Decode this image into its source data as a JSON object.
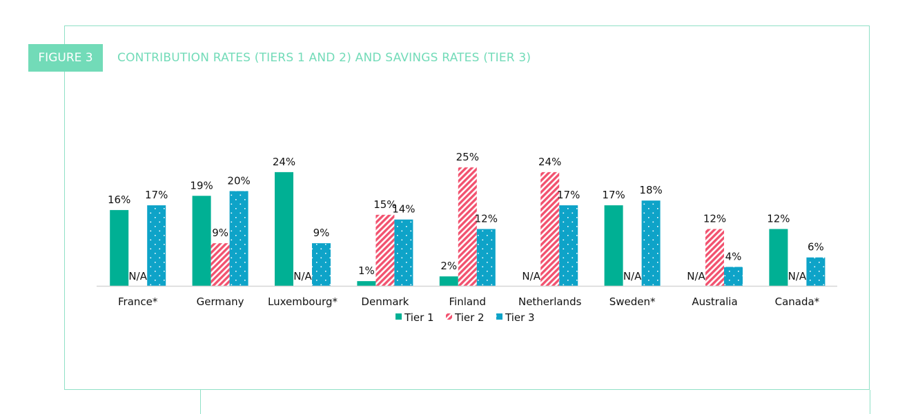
{
  "figure": {
    "label": "FIGURE 3",
    "title": "CONTRIBUTION RATES (TIERS 1 AND 2) AND SAVINGS RATES (TIER 3)"
  },
  "chart_data": {
    "type": "bar",
    "title": "CONTRIBUTION RATES (TIERS 1 AND 2) AND SAVINGS RATES (TIER 3)",
    "categories": [
      "France*",
      "Germany",
      "Luxembourg*",
      "Denmark",
      "Finland",
      "Netherlands",
      "Sweden*",
      "Australia",
      "Canada*"
    ],
    "series": [
      {
        "name": "Tier 1",
        "color": "#00b094",
        "pattern": "solid",
        "values": [
          16,
          19,
          24,
          1,
          2,
          null,
          17,
          null,
          12
        ]
      },
      {
        "name": "Tier 2",
        "color": "#f2526f",
        "pattern": "stripes",
        "values": [
          null,
          9,
          null,
          15,
          25,
          24,
          null,
          12,
          null
        ]
      },
      {
        "name": "Tier 3",
        "color": "#0ea3c8",
        "pattern": "dots",
        "values": [
          17,
          20,
          9,
          14,
          12,
          17,
          18,
          4,
          6
        ]
      }
    ],
    "na_label": "N/A",
    "unit": "%",
    "ylim": [
      0,
      25
    ],
    "grid": false,
    "legend": "bottom-center"
  }
}
